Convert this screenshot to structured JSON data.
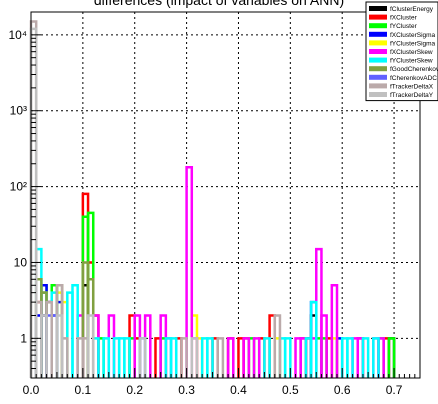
{
  "chart_data": {
    "type": "bar",
    "title": "differences (impact of variables on ANN)",
    "xlabel": "",
    "ylabel": "",
    "xlim": [
      0.0,
      0.75
    ],
    "ylog": true,
    "ylim": [
      0.3,
      20000
    ],
    "grid": true,
    "legend_position": "top-right",
    "x_ticks": [
      "0.0",
      "0.1",
      "0.2",
      "0.3",
      "0.4",
      "0.5",
      "0.6",
      "0.7"
    ],
    "x_tick_values": [
      0.0,
      0.1,
      0.2,
      0.3,
      0.4,
      0.5,
      0.6,
      0.7
    ],
    "y_ticks": [
      "1",
      "10",
      "10²",
      "10³",
      "10⁴"
    ],
    "y_tick_values": [
      1,
      10,
      100,
      1000,
      10000
    ],
    "bin_width": 0.01,
    "series": [
      {
        "name": "fClusterEnergy",
        "color": "#000000",
        "points": [
          [
            0.02,
            2
          ],
          [
            0.1,
            5
          ],
          [
            0.54,
            2
          ],
          [
            0.53,
            1
          ],
          [
            0.69,
            1
          ]
        ]
      },
      {
        "name": "fXCluster",
        "color": "#ff0000",
        "points": [
          [
            0.01,
            3
          ],
          [
            0.02,
            4
          ],
          [
            0.1,
            80
          ],
          [
            0.11,
            10
          ],
          [
            0.12,
            2
          ],
          [
            0.19,
            2
          ],
          [
            0.2,
            1
          ],
          [
            0.24,
            1
          ],
          [
            0.28,
            1
          ],
          [
            0.35,
            1
          ],
          [
            0.38,
            1
          ],
          [
            0.4,
            1
          ],
          [
            0.41,
            1
          ],
          [
            0.44,
            1
          ],
          [
            0.46,
            2
          ],
          [
            0.52,
            1
          ],
          [
            0.57,
            1
          ],
          [
            0.63,
            1
          ],
          [
            0.68,
            1
          ]
        ]
      },
      {
        "name": "fYCluster",
        "color": "#00ff00",
        "points": [
          [
            0.02,
            5
          ],
          [
            0.04,
            5
          ],
          [
            0.1,
            40
          ],
          [
            0.11,
            45
          ],
          [
            0.13,
            1
          ],
          [
            0.19,
            1
          ],
          [
            0.25,
            1
          ],
          [
            0.42,
            1
          ],
          [
            0.55,
            1
          ],
          [
            0.56,
            1
          ],
          [
            0.67,
            1
          ],
          [
            0.69,
            1
          ]
        ]
      },
      {
        "name": "fXClusterSigma",
        "color": "#0000ff",
        "points": [
          [
            0.01,
            2
          ],
          [
            0.02,
            5
          ],
          [
            0.03,
            3
          ],
          [
            0.04,
            2
          ],
          [
            0.05,
            3
          ],
          [
            0.54,
            3
          ],
          [
            0.59,
            1
          ]
        ]
      },
      {
        "name": "fYClusterSigma",
        "color": "#ffff00",
        "points": [
          [
            0.02,
            4
          ],
          [
            0.05,
            4
          ],
          [
            0.06,
            3
          ],
          [
            0.31,
            2
          ],
          [
            0.32,
            1
          ],
          [
            0.47,
            1
          ],
          [
            0.58,
            1
          ]
        ]
      },
      {
        "name": "fXClusterSkew",
        "color": "#ff00ff",
        "points": [
          [
            0.03,
            3
          ],
          [
            0.09,
            2
          ],
          [
            0.12,
            2
          ],
          [
            0.15,
            2
          ],
          [
            0.2,
            2
          ],
          [
            0.22,
            2
          ],
          [
            0.25,
            2
          ],
          [
            0.26,
            1
          ],
          [
            0.3,
            180
          ],
          [
            0.31,
            1
          ],
          [
            0.38,
            1
          ],
          [
            0.41,
            1
          ],
          [
            0.43,
            1
          ],
          [
            0.51,
            1
          ],
          [
            0.52,
            1
          ],
          [
            0.54,
            1
          ],
          [
            0.55,
            15
          ],
          [
            0.56,
            2
          ],
          [
            0.58,
            5
          ],
          [
            0.62,
            1
          ],
          [
            0.63,
            1
          ],
          [
            0.66,
            1
          ],
          [
            0.67,
            1
          ]
        ]
      },
      {
        "name": "fYClusterSkew",
        "color": "#00ffff",
        "points": [
          [
            0.01,
            15
          ],
          [
            0.02,
            4
          ],
          [
            0.04,
            4
          ],
          [
            0.07,
            4
          ],
          [
            0.08,
            5
          ],
          [
            0.12,
            1
          ],
          [
            0.14,
            1
          ],
          [
            0.16,
            1
          ],
          [
            0.17,
            1
          ],
          [
            0.18,
            1
          ],
          [
            0.21,
            1
          ],
          [
            0.26,
            1
          ],
          [
            0.27,
            1
          ],
          [
            0.33,
            1
          ],
          [
            0.34,
            1
          ],
          [
            0.45,
            1
          ],
          [
            0.48,
            1
          ],
          [
            0.49,
            1
          ],
          [
            0.53,
            1
          ],
          [
            0.54,
            3
          ],
          [
            0.6,
            1
          ],
          [
            0.61,
            1
          ],
          [
            0.64,
            1
          ],
          [
            0.66,
            1
          ]
        ]
      },
      {
        "name": "fGoodCherenkovHit",
        "color": "#80a040",
        "points": [
          [
            0.01,
            6
          ],
          [
            0.02,
            4
          ],
          [
            0.03,
            3
          ],
          [
            0.05,
            5
          ],
          [
            0.1,
            10
          ],
          [
            0.11,
            6
          ]
        ]
      },
      {
        "name": "fCherenkovADC",
        "color": "#6060ff",
        "points": [
          [
            0.02,
            2
          ],
          [
            0.03,
            2
          ],
          [
            0.04,
            2
          ]
        ]
      },
      {
        "name": "fTrackerDeltaX",
        "color": "#bbaaaa",
        "points": [
          [
            0.0,
            15000
          ],
          [
            0.01,
            3
          ],
          [
            0.03,
            3
          ],
          [
            0.05,
            5
          ],
          [
            0.06,
            1
          ],
          [
            0.09,
            1
          ],
          [
            0.1,
            1
          ],
          [
            0.29,
            1
          ],
          [
            0.36,
            1
          ],
          [
            0.47,
            2
          ]
        ]
      },
      {
        "name": "fTrackerDeltaY",
        "color": "#c0c0c0",
        "points": [
          [
            0.0,
            12000
          ],
          [
            0.02,
            2
          ],
          [
            0.05,
            2
          ],
          [
            0.11,
            2
          ],
          [
            0.21,
            1
          ],
          [
            0.31,
            1
          ]
        ]
      }
    ]
  }
}
